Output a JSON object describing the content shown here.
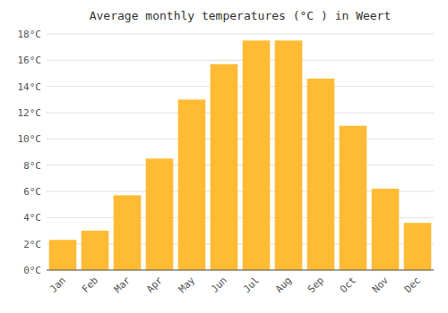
{
  "chart_data": {
    "type": "bar",
    "title": "Average monthly temperatures (°C ) in Weert",
    "categories": [
      "Jan",
      "Feb",
      "Mar",
      "Apr",
      "May",
      "Jun",
      "Jul",
      "Aug",
      "Sep",
      "Oct",
      "Nov",
      "Dec"
    ],
    "values": [
      2.3,
      3.0,
      5.7,
      8.5,
      13.0,
      15.7,
      17.5,
      17.5,
      14.6,
      11.0,
      6.2,
      3.6
    ],
    "color": "#FFBB33",
    "ylim": [
      0,
      18
    ],
    "yticks": [
      {
        "value": 0,
        "label": "0°C"
      },
      {
        "value": 2,
        "label": "2°C"
      },
      {
        "value": 4,
        "label": "4°C"
      },
      {
        "value": 6,
        "label": "6°C"
      },
      {
        "value": 8,
        "label": "8°C"
      },
      {
        "value": 10,
        "label": "10°C"
      },
      {
        "value": 12,
        "label": "12°C"
      },
      {
        "value": 14,
        "label": "14°C"
      },
      {
        "value": 16,
        "label": "16°C"
      },
      {
        "value": 18,
        "label": "18°C"
      }
    ],
    "grid": true
  }
}
